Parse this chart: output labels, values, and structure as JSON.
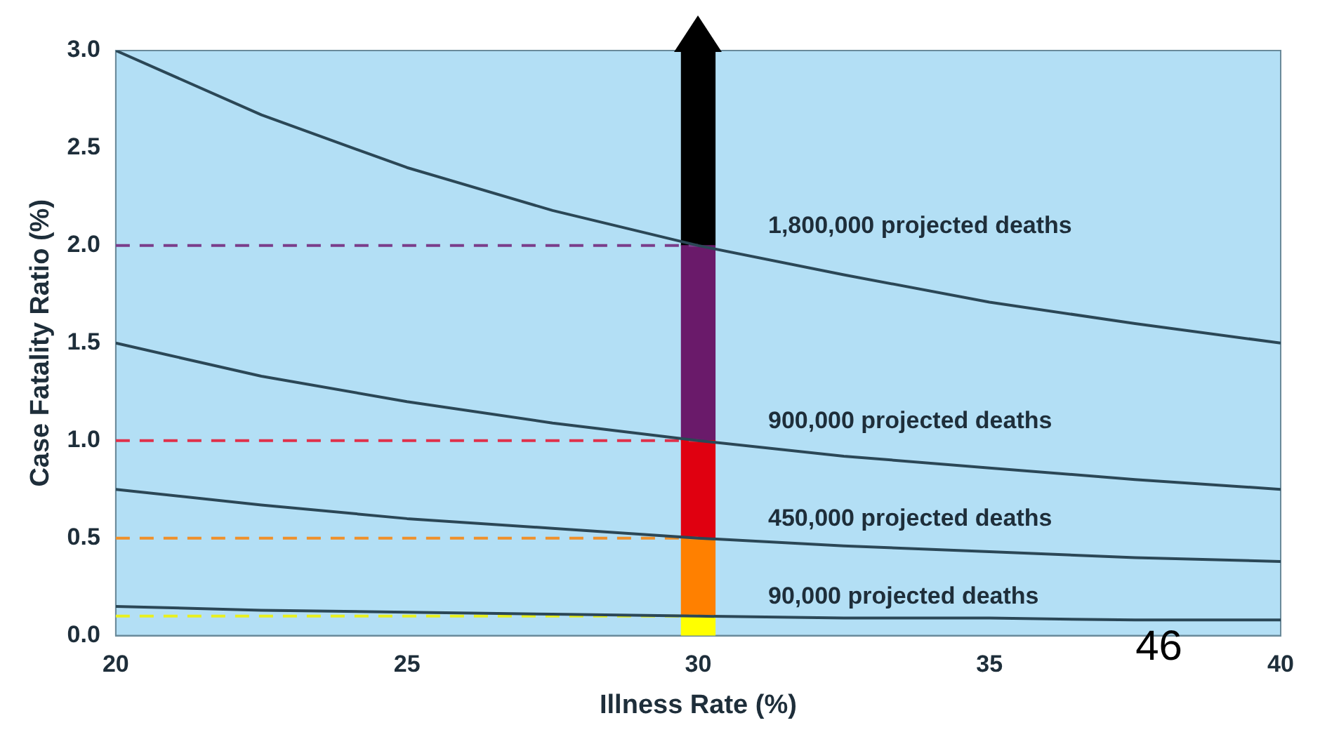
{
  "chart_data": {
    "type": "line",
    "xlabel": "Illness Rate (%)",
    "ylabel": "Case Fatality Ratio (%)",
    "xlim": [
      20,
      40
    ],
    "xticks": [
      20,
      25,
      30,
      35,
      40
    ],
    "ylim": [
      0,
      3
    ],
    "yticks": [
      {
        "value": 0,
        "label": "0.0"
      },
      {
        "value": 0.5,
        "label": "0.5"
      },
      {
        "value": 1,
        "label": "1.0"
      },
      {
        "value": 1.5,
        "label": "1.5"
      },
      {
        "value": 2,
        "label": "2.0"
      },
      {
        "value": 2.5,
        "label": "2.5"
      },
      {
        "value": 3,
        "label": "3.0"
      }
    ],
    "x": [
      20,
      22.5,
      25,
      27.5,
      30,
      32.5,
      35,
      37.5,
      40
    ],
    "stacked": true,
    "grid": false,
    "legend": false,
    "marker": "none",
    "series": [
      {
        "name": "1,800,000 projected deaths",
        "color": "#2b4756",
        "values": [
          3,
          2.67,
          2.4,
          2.18,
          2,
          1.85,
          1.71,
          1.6,
          1.5
        ]
      },
      {
        "name": "900,000 projected deaths",
        "color": "#2b4756",
        "values": [
          1.5,
          1.33,
          1.2,
          1.09,
          1,
          0.92,
          0.86,
          0.8,
          0.75
        ]
      },
      {
        "name": "450,000 projected deaths",
        "color": "#2b4756",
        "values": [
          0.75,
          0.67,
          0.6,
          0.55,
          0.5,
          0.46,
          0.43,
          0.4,
          0.38
        ]
      },
      {
        "name": "90,000 projected deaths",
        "color": "#2b4756",
        "values": [
          0.15,
          0.13,
          0.12,
          0.11,
          0.1,
          0.09,
          0.09,
          0.08,
          0.08
        ]
      },
      {
        "type": "line",
        "line_style": "dashed",
        "color": "#7a3d8a",
        "values": [
          2,
          2,
          2,
          2,
          2,
          null,
          null,
          null,
          null
        ]
      },
      {
        "type": "line",
        "line_style": "dashed",
        "color": "#e0304a",
        "values": [
          1,
          1,
          1,
          1,
          1,
          null,
          null,
          null,
          null
        ]
      },
      {
        "type": "line",
        "line_style": "dashed",
        "color": "#f0902a",
        "values": [
          0.5,
          0.5,
          0.5,
          0.5,
          0.5,
          null,
          null,
          null,
          null
        ]
      },
      {
        "type": "line",
        "line_style": "dashed",
        "color": "#e8f020",
        "values": [
          0.1,
          0.1,
          0.1,
          0.1,
          0.1,
          null,
          null,
          null,
          null
        ]
      },
      {
        "type": "bar",
        "color": "#ffff00",
        "values": [
          null,
          null,
          null,
          null,
          0.1,
          null,
          null,
          null,
          null
        ]
      },
      {
        "type": "bar",
        "color": "#ff8000",
        "values": [
          null,
          null,
          null,
          null,
          0.4,
          null,
          null,
          null,
          null
        ]
      },
      {
        "type": "bar",
        "color": "#e00010",
        "values": [
          null,
          null,
          null,
          null,
          0.5,
          null,
          null,
          null,
          null
        ]
      },
      {
        "type": "bar",
        "color": "#6a1a6a",
        "values": [
          null,
          null,
          null,
          null,
          1,
          null,
          null,
          null,
          null
        ]
      },
      {
        "type": "bar",
        "color": "#000000",
        "values": [
          null,
          null,
          null,
          null,
          1,
          null,
          null,
          null,
          null
        ]
      }
    ],
    "annotations": [
      "46"
    ]
  }
}
